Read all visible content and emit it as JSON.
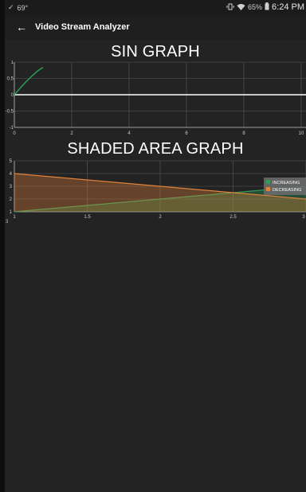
{
  "status_bar": {
    "left_indicators": [
      "✓",
      "69°"
    ],
    "battery_percent": "65%",
    "time": "6:24 PM"
  },
  "app_bar": {
    "back_icon": "arrow-left-icon",
    "title": "Video Stream Analyzer"
  },
  "sin_graph": {
    "title": "SIN GRAPH",
    "chart_data": {
      "type": "line",
      "x_ticks": [
        "0",
        "2",
        "4",
        "6",
        "8",
        "10"
      ],
      "y_ticks": [
        "1",
        "0.5",
        "0",
        "-0.5",
        "-1"
      ],
      "xlim": [
        0,
        10
      ],
      "ylim": [
        -1,
        1
      ],
      "grid": true,
      "baseline_y": 0,
      "series": [
        {
          "color": "#26a65b",
          "x": [
            0,
            0.2,
            0.4,
            0.6,
            0.8,
            1.0
          ],
          "y": [
            0,
            0.2,
            0.39,
            0.56,
            0.72,
            0.84
          ]
        }
      ]
    }
  },
  "shaded_graph": {
    "title": "SHADED AREA GRAPH",
    "below_axis_label": "3",
    "chart_data": {
      "type": "area",
      "x_ticks": [
        "1",
        "1.5",
        "2",
        "2.5",
        "3"
      ],
      "y_ticks": [
        "5",
        "4",
        "3",
        "2",
        "1"
      ],
      "xlim": [
        1,
        3
      ],
      "ylim": [
        1,
        5
      ],
      "grid": true,
      "legend_position": "top-right",
      "series": [
        {
          "name": "INCREASING",
          "color": "#2e9e5a",
          "x": [
            1,
            3
          ],
          "y": [
            1,
            3
          ]
        },
        {
          "name": "DECREASING",
          "color": "#e0823a",
          "x": [
            1,
            3
          ],
          "y": [
            4,
            2
          ]
        }
      ]
    }
  }
}
